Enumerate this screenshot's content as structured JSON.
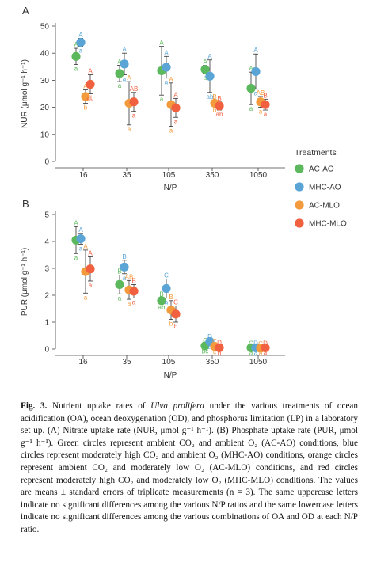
{
  "figure": {
    "legend": {
      "title": "Treatments",
      "items": [
        {
          "label": "AC-AO",
          "color": "#5cb85c"
        },
        {
          "label": "MHC-AO",
          "color": "#5aa5d6"
        },
        {
          "label": "AC-MLO",
          "color": "#f39a3c"
        },
        {
          "label": "MHC-MLO",
          "color": "#f1603f"
        }
      ]
    },
    "caption": {
      "label": "Fig. 3.",
      "pre": " Nutrient uptake rates of ",
      "species": "Ulva prolifera",
      "text": " under the various treatments of ocean acidification (OA), ocean deoxygenation (OD), and phosphorus limitation (LP) in a laboratory set up. (A) Nitrate uptake rate (NUR, μmol g⁻¹ h⁻¹). (B) Phosphate uptake rate (PUR, μmol g⁻¹ h⁻¹). Green circles represent ambient CO₂ and ambient O₂ (AC-AO) conditions, blue circles represent moderately high CO₂ and ambient O₂ (MHC-AO) conditions, orange circles represent ambient CO₂ and moderately low O₂ (AC-MLO) conditions, and red circles represent moderately high CO₂ and moderately low O₂ (MHC-MLO) conditions. The values are means ± standard errors of triplicate measurements (n = 3). The same uppercase letters indicate no significant differences among the various N/P ratios and the same lowercase letters indicate no significant differences among the various combinations of OA and OD at each N/P ratio."
    }
  },
  "chart_data": [
    {
      "panel": "A",
      "type": "scatter",
      "xlabel": "N/P",
      "ylabel": "NUR (μmol g⁻¹ h⁻¹)",
      "categories": [
        "16",
        "35",
        "105",
        "350",
        "1050"
      ],
      "ylim": [
        0,
        50
      ],
      "yticks": [
        0,
        10,
        20,
        30,
        40,
        50
      ],
      "series": [
        {
          "name": "AC-AO",
          "color": "#5cb85c",
          "values": [
            38.8,
            32.5,
            33.5,
            34.0,
            27.0
          ],
          "errors": [
            3.0,
            3.0,
            9.0,
            1.5,
            6.0
          ],
          "upper": [
            "A",
            "A",
            "A",
            "A",
            "A"
          ],
          "lower": [
            "a",
            "a",
            "a",
            "a",
            "a"
          ]
        },
        {
          "name": "MHC-AO",
          "color": "#5aa5d6",
          "values": [
            44.0,
            36.0,
            34.8,
            31.5,
            33.2
          ],
          "errors": [
            1.5,
            4.0,
            4.0,
            6.0,
            6.5
          ],
          "upper": [
            "A",
            "A",
            "A",
            "A",
            "A"
          ],
          "lower": [
            "a",
            "a",
            "a",
            "ab",
            "a"
          ]
        },
        {
          "name": "AC-MLO",
          "color": "#f39a3c",
          "values": [
            24.0,
            21.5,
            21.0,
            21.5,
            22.0
          ],
          "errors": [
            2.5,
            8.0,
            8.0,
            1.0,
            2.0
          ],
          "upper": [
            "A",
            "A",
            "A",
            "B",
            "AB"
          ],
          "lower": [
            "b",
            "a",
            "a",
            "b",
            "a"
          ]
        },
        {
          "name": "MHC-MLO",
          "color": "#f1603f",
          "values": [
            28.5,
            22.0,
            19.8,
            20.5,
            21.0
          ],
          "errors": [
            3.5,
            3.5,
            3.5,
            1.5,
            2.0
          ],
          "upper": [
            "A",
            "AB",
            "A",
            "B",
            "B"
          ],
          "lower": [
            "ab",
            "a",
            "a",
            "ab",
            "a"
          ]
        }
      ]
    },
    {
      "panel": "B",
      "type": "scatter",
      "xlabel": "N/P",
      "ylabel": "PUR (μmol g⁻¹ h⁻¹)",
      "categories": [
        "16",
        "35",
        "105",
        "350",
        "1050"
      ],
      "ylim": [
        0,
        5
      ],
      "yticks": [
        0,
        1,
        2,
        3,
        4,
        5
      ],
      "series": [
        {
          "name": "AC-AO",
          "color": "#5cb85c",
          "values": [
            4.05,
            2.4,
            1.8,
            0.12,
            0.05
          ],
          "errors": [
            0.5,
            0.35,
            0.1,
            0.05,
            0.03
          ],
          "upper": [
            "A",
            "B",
            "B",
            "C",
            "C"
          ],
          "lower": [
            "a",
            "a",
            "ab",
            "bc",
            "a"
          ]
        },
        {
          "name": "MHC-AO",
          "color": "#5aa5d6",
          "values": [
            4.1,
            3.05,
            2.25,
            0.28,
            0.05
          ],
          "errors": [
            0.2,
            0.25,
            0.35,
            0.05,
            0.03
          ],
          "upper": [
            "A",
            "B",
            "C",
            "D",
            "D"
          ],
          "lower": [
            "a",
            "a",
            "a",
            "a",
            "a"
          ]
        },
        {
          "name": "AC-MLO",
          "color": "#f39a3c",
          "values": [
            2.88,
            2.2,
            1.45,
            0.1,
            0.03
          ],
          "errors": [
            0.8,
            0.35,
            0.35,
            0.05,
            0.03
          ],
          "upper": [
            "A",
            "AB",
            "B",
            "C",
            "C"
          ],
          "lower": [
            "a",
            "a",
            "b",
            "c",
            "a"
          ]
        },
        {
          "name": "MHC-MLO",
          "color": "#f1603f",
          "values": [
            2.98,
            2.15,
            1.3,
            0.05,
            0.05
          ],
          "errors": [
            0.45,
            0.25,
            0.3,
            0.05,
            0.03
          ],
          "upper": [
            "A",
            "B",
            "C",
            "D",
            "D"
          ],
          "lower": [
            "a",
            "a",
            "b",
            "b",
            "a"
          ]
        }
      ]
    }
  ]
}
